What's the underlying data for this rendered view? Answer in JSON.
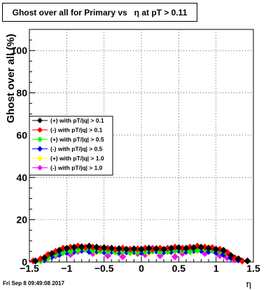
{
  "chart_data": {
    "type": "scatter",
    "title": "Ghost over all for Primary vs   η at pT > 0.11",
    "xlabel": "η",
    "ylabel": "Ghost over all (%)",
    "xlim": [
      -1.5,
      1.5
    ],
    "ylim": [
      0,
      110
    ],
    "x_ticks": [
      -1.5,
      -1,
      -0.5,
      0,
      0.5,
      1,
      1.5
    ],
    "x_tick_labels": [
      "−1.5",
      "−1",
      "−0.5",
      "0",
      "0.5",
      "1",
      "1.5"
    ],
    "y_ticks": [
      0,
      20,
      40,
      60,
      80,
      100
    ],
    "y_tick_labels": [
      "0",
      "20",
      "40",
      "60",
      "80",
      "100"
    ],
    "grid": true,
    "legend_position": "middle-left",
    "series": [
      {
        "name": "(+) with pT/|q| > 0.1",
        "color": "#000000",
        "x": [
          -1.42,
          -1.3,
          -1.2,
          -1.1,
          -1.0,
          -0.9,
          -0.8,
          -0.7,
          -0.6,
          -0.5,
          -0.4,
          -0.3,
          -0.2,
          -0.1,
          0.0,
          0.1,
          0.2,
          0.3,
          0.4,
          0.5,
          0.6,
          0.7,
          0.8,
          0.9,
          1.0,
          1.1,
          1.2,
          1.3,
          1.42
        ],
        "y": [
          0.5,
          2,
          4,
          5.5,
          6.5,
          7,
          7.2,
          7.5,
          7,
          6.8,
          6.5,
          6.3,
          6,
          6.2,
          6,
          6.5,
          6.3,
          6,
          6.5,
          6.8,
          6.5,
          6.8,
          7,
          6.5,
          6,
          5.5,
          3,
          1.5,
          0.5
        ]
      },
      {
        "name": "(-) with pT/|q| > 0.1",
        "color": "#ff0000",
        "x": [
          -1.45,
          -1.35,
          -1.25,
          -1.15,
          -1.05,
          -0.95,
          -0.85,
          -0.75,
          -0.65,
          -0.55,
          -0.45,
          -0.35,
          -0.25,
          -0.15,
          -0.05,
          0.05,
          0.15,
          0.25,
          0.35,
          0.45,
          0.55,
          0.65,
          0.75,
          0.85,
          0.95,
          1.05,
          1.15,
          1.25,
          1.35
        ],
        "y": [
          0.5,
          1.5,
          3.5,
          5,
          6.5,
          7,
          7.5,
          7,
          7,
          6.5,
          6.5,
          6,
          6.5,
          6,
          6.2,
          6.5,
          6,
          6.5,
          6.5,
          7,
          6.5,
          7,
          7.5,
          7,
          6.8,
          6,
          4.5,
          2,
          0.5
        ]
      },
      {
        "name": "(+) with pT/|q| > 0.5",
        "color": "#00ff00",
        "x": [
          -1.35,
          -1.25,
          -1.15,
          -1.05,
          -0.95,
          -0.85,
          -0.75,
          -0.65,
          -0.55,
          -0.45,
          -0.35,
          -0.25,
          -0.15,
          -0.05,
          0.05,
          0.15,
          0.25,
          0.35,
          0.45,
          0.55,
          0.65,
          0.75,
          0.85,
          0.95,
          1.05,
          1.15,
          1.25,
          1.35
        ],
        "y": [
          0.5,
          2,
          3.5,
          4.5,
          5,
          5.5,
          6,
          5.5,
          5.2,
          5,
          4.8,
          5,
          4.5,
          4.8,
          5,
          5.2,
          4.8,
          5,
          5.5,
          5.5,
          5,
          5.5,
          6,
          5.5,
          5,
          4,
          2,
          0.5
        ]
      },
      {
        "name": "(-) with pT/|q| > 0.5",
        "color": "#0000ff",
        "x": [
          -1.3,
          -1.2,
          -1.1,
          -1.0,
          -0.9,
          -0.8,
          -0.7,
          -0.6,
          -0.5,
          -0.4,
          -0.3,
          -0.2,
          -0.1,
          0.0,
          0.1,
          0.2,
          0.3,
          0.4,
          0.5,
          0.6,
          0.7,
          0.8,
          0.9,
          1.0,
          1.1,
          1.2,
          1.3
        ],
        "y": [
          1,
          2.5,
          3.5,
          4.5,
          5,
          5.5,
          5,
          5.2,
          4.8,
          5,
          4.5,
          4.8,
          5,
          4.5,
          5,
          5.2,
          4.8,
          5,
          5.5,
          5,
          5.5,
          5.5,
          5,
          4.5,
          3.5,
          2,
          1
        ]
      },
      {
        "name": "(+) with pT/|q| > 1.0",
        "color": "#ffff00",
        "x": [
          -1.3,
          -1.2,
          -1.1,
          -1.0,
          -0.9,
          -0.8,
          -0.7,
          -0.6,
          -0.5,
          -0.4,
          -0.3,
          -0.2,
          -0.1,
          0.0,
          0.1,
          0.2,
          0.3,
          0.4,
          0.5,
          0.6,
          0.7,
          0.8,
          0.9,
          1.0,
          1.1,
          1.2,
          1.3
        ],
        "y": [
          1.5,
          3,
          4,
          5.5,
          5,
          6,
          5.5,
          4.5,
          6,
          5,
          4,
          5.5,
          4.5,
          5,
          4,
          6,
          5,
          4.5,
          5,
          6.5,
          5,
          6,
          7,
          5.5,
          4,
          2.5,
          1
        ]
      },
      {
        "name": "(-) with pT/|q| > 1.0",
        "color": "#ff00ff",
        "x": [
          -1.25,
          -1.15,
          -1.05,
          -0.95,
          -0.85,
          -0.75,
          -0.65,
          -0.55,
          -0.45,
          -0.35,
          -0.25,
          -0.15,
          -0.05,
          0.05,
          0.15,
          0.25,
          0.35,
          0.45,
          0.55,
          0.65,
          0.75,
          0.85,
          0.95,
          1.05,
          1.15,
          1.25
        ],
        "y": [
          2,
          3,
          4.5,
          3.5,
          5,
          6,
          4,
          5.5,
          3,
          5,
          2.5,
          4.5,
          4,
          3.5,
          6.5,
          3,
          5,
          2.5,
          4,
          5,
          5.5,
          4,
          6,
          3,
          2,
          1
        ]
      }
    ]
  },
  "footer": {
    "timestamp": "Fri Sep  8 09:49:08 2017"
  }
}
